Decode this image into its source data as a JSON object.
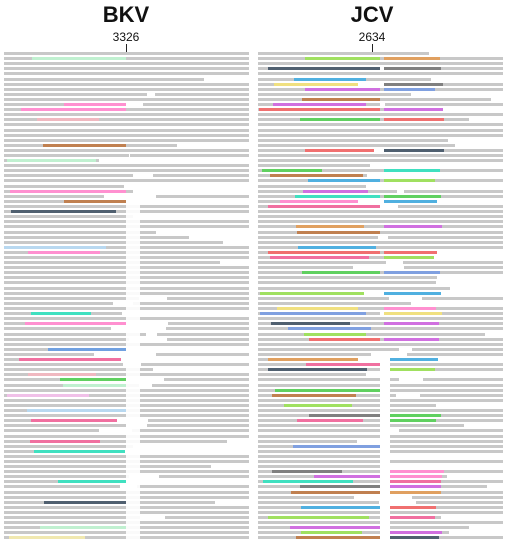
{
  "panels": [
    {
      "title": "BKV",
      "position_label": "3326",
      "read_color": "#c8c8c8",
      "read_count": 96,
      "colored_read_colors": [
        "#f0b8c0",
        "#b8d8f0",
        "#f0e8b0",
        "#c0f0d0",
        "#f0c0e8",
        "#40e0c0",
        "#60d060",
        "#d070e0",
        "#c08050",
        "#70a0e0",
        "#f070a0",
        "#506070",
        "#a0e060",
        "#ff90d0"
      ]
    },
    {
      "title": "JCV",
      "position_label": "2634",
      "read_color": "#c8c8c8",
      "read_count": 96,
      "colored_read_colors": [
        "#40e0c0",
        "#d070e0",
        "#60d060",
        "#f07070",
        "#80a0e0",
        "#f0e080",
        "#a0e060",
        "#808080",
        "#f070a0",
        "#c08050",
        "#50b0e0",
        "#e0a060",
        "#506070",
        "#ff90d0"
      ]
    }
  ]
}
